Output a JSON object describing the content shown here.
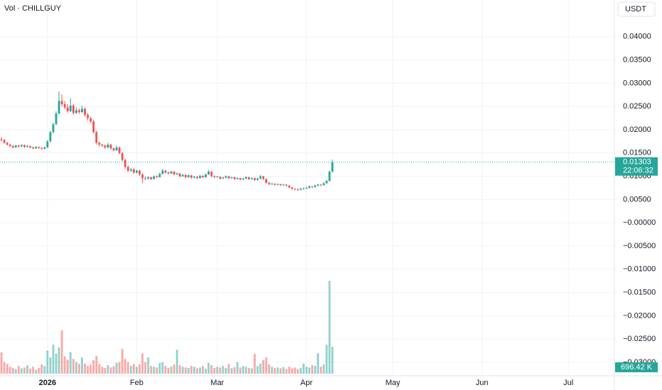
{
  "chart_data": {
    "type": "candlestick",
    "title": "Vol · CHILLGUY",
    "currency": "USDT",
    "countdown": "22:06:32",
    "up_color": "#26a69a",
    "down_color": "#ef5350",
    "grid": true,
    "ylim": [
      -0.0329,
      0.0479
    ],
    "xlim": [
      -0.5,
      213
    ],
    "yticks": [
      {
        "value": 0.04,
        "label": "0.04000"
      },
      {
        "value": 0.035,
        "label": "0.03500"
      },
      {
        "value": 0.03,
        "label": "0.03000"
      },
      {
        "value": 0.025,
        "label": "0.02500"
      },
      {
        "value": 0.02,
        "label": "0.02000"
      },
      {
        "value": 0.015,
        "label": "0.01500"
      },
      {
        "value": 0.01,
        "label": "0.01000"
      },
      {
        "value": 0.005,
        "label": "0.00500"
      },
      {
        "value": 0,
        "label": "−0.00000"
      },
      {
        "value": -0.005,
        "label": "−0.00500"
      },
      {
        "value": -0.01,
        "label": "−0.01000"
      },
      {
        "value": -0.015,
        "label": "−0.01500"
      },
      {
        "value": -0.02,
        "label": "−0.02000"
      },
      {
        "value": -0.025,
        "label": "−0.02500"
      },
      {
        "value": -0.03,
        "label": "−0.03000"
      }
    ],
    "xticks": [
      {
        "value": 16,
        "label": "2026"
      },
      {
        "value": 47,
        "label": "Feb"
      },
      {
        "value": 75,
        "label": "Mar"
      },
      {
        "value": 106,
        "label": "Apr"
      },
      {
        "value": 136,
        "label": "May"
      },
      {
        "value": 167,
        "label": "Jun"
      },
      {
        "value": 197,
        "label": "Jul"
      }
    ],
    "ohlc": [
      [
        0.018,
        0.0184,
        0.0175,
        0.0178
      ],
      [
        0.0178,
        0.018,
        0.017,
        0.0172
      ],
      [
        0.0172,
        0.0174,
        0.0166,
        0.0168
      ],
      [
        0.0168,
        0.017,
        0.0163,
        0.0165
      ],
      [
        0.0165,
        0.0167,
        0.016,
        0.0162
      ],
      [
        0.0162,
        0.0168,
        0.0161,
        0.0166
      ],
      [
        0.0166,
        0.0168,
        0.0162,
        0.0164
      ],
      [
        0.0164,
        0.0169,
        0.0163,
        0.0167
      ],
      [
        0.0167,
        0.0168,
        0.0161,
        0.0163
      ],
      [
        0.0163,
        0.0167,
        0.0162,
        0.0165
      ],
      [
        0.0165,
        0.0166,
        0.016,
        0.0162
      ],
      [
        0.0162,
        0.0164,
        0.0158,
        0.016
      ],
      [
        0.016,
        0.0165,
        0.0159,
        0.0163
      ],
      [
        0.0163,
        0.0164,
        0.0159,
        0.0161
      ],
      [
        0.0161,
        0.0162,
        0.0157,
        0.0159
      ],
      [
        0.0159,
        0.0164,
        0.0158,
        0.0162
      ],
      [
        0.0162,
        0.0178,
        0.0161,
        0.0175
      ],
      [
        0.0175,
        0.0198,
        0.0173,
        0.0195
      ],
      [
        0.0195,
        0.0215,
        0.0192,
        0.0212
      ],
      [
        0.0212,
        0.024,
        0.021,
        0.0235
      ],
      [
        0.0235,
        0.0282,
        0.0233,
        0.0262
      ],
      [
        0.0262,
        0.0276,
        0.025,
        0.0255
      ],
      [
        0.0255,
        0.0262,
        0.0244,
        0.0248
      ],
      [
        0.0248,
        0.0255,
        0.0236,
        0.024
      ],
      [
        0.024,
        0.0268,
        0.0238,
        0.0252
      ],
      [
        0.0252,
        0.0256,
        0.0232,
        0.0236
      ],
      [
        0.0236,
        0.0248,
        0.0234,
        0.0242
      ],
      [
        0.0242,
        0.0246,
        0.0234,
        0.0238
      ],
      [
        0.0238,
        0.0252,
        0.0236,
        0.0245
      ],
      [
        0.0245,
        0.0248,
        0.0228,
        0.0232
      ],
      [
        0.0232,
        0.0236,
        0.022,
        0.0225
      ],
      [
        0.0225,
        0.0228,
        0.0214,
        0.0218
      ],
      [
        0.0218,
        0.0222,
        0.0192,
        0.0195
      ],
      [
        0.0195,
        0.0198,
        0.0168,
        0.0172
      ],
      [
        0.0172,
        0.0175,
        0.0164,
        0.0168
      ],
      [
        0.0168,
        0.017,
        0.0163,
        0.0166
      ],
      [
        0.0166,
        0.0168,
        0.0159,
        0.0162
      ],
      [
        0.0162,
        0.0172,
        0.016,
        0.0168
      ],
      [
        0.0168,
        0.017,
        0.0157,
        0.016
      ],
      [
        0.016,
        0.0162,
        0.0153,
        0.0156
      ],
      [
        0.0156,
        0.0166,
        0.0154,
        0.0162
      ],
      [
        0.0162,
        0.0164,
        0.0147,
        0.015
      ],
      [
        0.015,
        0.0152,
        0.0132,
        0.0135
      ],
      [
        0.0135,
        0.0138,
        0.0116,
        0.012
      ],
      [
        0.012,
        0.0124,
        0.0109,
        0.0112
      ],
      [
        0.0112,
        0.0118,
        0.011,
        0.0115
      ],
      [
        0.0115,
        0.0117,
        0.0105,
        0.0108
      ],
      [
        0.0108,
        0.0114,
        0.0106,
        0.0112
      ],
      [
        0.0112,
        0.0114,
        0.0101,
        0.0104
      ],
      [
        0.0104,
        0.0106,
        0.0085,
        0.0096
      ],
      [
        0.0096,
        0.0099,
        0.0092,
        0.0095
      ],
      [
        0.0095,
        0.01,
        0.0093,
        0.0098
      ],
      [
        0.0098,
        0.0099,
        0.0092,
        0.0094
      ],
      [
        0.0094,
        0.0102,
        0.0093,
        0.01
      ],
      [
        0.01,
        0.0102,
        0.0096,
        0.0098
      ],
      [
        0.0098,
        0.0108,
        0.0097,
        0.0105
      ],
      [
        0.0105,
        0.0116,
        0.0104,
        0.0112
      ],
      [
        0.0112,
        0.0114,
        0.0106,
        0.0108
      ],
      [
        0.0108,
        0.011,
        0.0104,
        0.0106
      ],
      [
        0.0106,
        0.0112,
        0.0105,
        0.011
      ],
      [
        0.011,
        0.0111,
        0.0102,
        0.0104
      ],
      [
        0.0104,
        0.0108,
        0.0103,
        0.0106
      ],
      [
        0.0106,
        0.0107,
        0.0098,
        0.01
      ],
      [
        0.01,
        0.0105,
        0.0099,
        0.0103
      ],
      [
        0.0103,
        0.0104,
        0.0096,
        0.0098
      ],
      [
        0.0098,
        0.0104,
        0.0097,
        0.0102
      ],
      [
        0.0102,
        0.0103,
        0.0095,
        0.0097
      ],
      [
        0.0097,
        0.0101,
        0.0096,
        0.0099
      ],
      [
        0.0099,
        0.01,
        0.0094,
        0.0096
      ],
      [
        0.0096,
        0.0103,
        0.0095,
        0.0101
      ],
      [
        0.0101,
        0.0102,
        0.0096,
        0.0098
      ],
      [
        0.0098,
        0.0106,
        0.0097,
        0.0104
      ],
      [
        0.0104,
        0.0114,
        0.0103,
        0.011
      ],
      [
        0.011,
        0.0111,
        0.0098,
        0.01
      ],
      [
        0.01,
        0.0102,
        0.0096,
        0.0098
      ],
      [
        0.0098,
        0.0101,
        0.0097,
        0.0099
      ],
      [
        0.0099,
        0.01,
        0.0093,
        0.0095
      ],
      [
        0.0095,
        0.0099,
        0.0094,
        0.0097
      ],
      [
        0.0097,
        0.0102,
        0.0096,
        0.01
      ],
      [
        0.01,
        0.0101,
        0.0094,
        0.0096
      ],
      [
        0.0096,
        0.0099,
        0.0095,
        0.0098
      ],
      [
        0.0098,
        0.0099,
        0.0092,
        0.0094
      ],
      [
        0.0094,
        0.0098,
        0.0093,
        0.0096
      ],
      [
        0.0096,
        0.0097,
        0.0091,
        0.0093
      ],
      [
        0.0093,
        0.0097,
        0.0092,
        0.0095
      ],
      [
        0.0095,
        0.01,
        0.0094,
        0.0098
      ],
      [
        0.0098,
        0.0099,
        0.0092,
        0.0094
      ],
      [
        0.0094,
        0.0098,
        0.0093,
        0.0096
      ],
      [
        0.0096,
        0.0097,
        0.009,
        0.0092
      ],
      [
        0.0092,
        0.0097,
        0.0091,
        0.0095
      ],
      [
        0.0095,
        0.0103,
        0.0094,
        0.01
      ],
      [
        0.01,
        0.0101,
        0.0092,
        0.0094
      ],
      [
        0.0094,
        0.0095,
        0.0084,
        0.0086
      ],
      [
        0.0086,
        0.0088,
        0.0081,
        0.0083
      ],
      [
        0.0083,
        0.0086,
        0.0082,
        0.0084
      ],
      [
        0.0084,
        0.0085,
        0.008,
        0.0082
      ],
      [
        0.0082,
        0.0085,
        0.0081,
        0.0083
      ],
      [
        0.0083,
        0.0084,
        0.0079,
        0.0081
      ],
      [
        0.0081,
        0.0084,
        0.008,
        0.0082
      ],
      [
        0.0082,
        0.0083,
        0.0078,
        0.008
      ],
      [
        0.008,
        0.0081,
        0.0074,
        0.0076
      ],
      [
        0.0076,
        0.0077,
        0.0071,
        0.0073
      ],
      [
        0.0073,
        0.0074,
        0.007,
        0.0072
      ],
      [
        0.0072,
        0.0073,
        0.0069,
        0.0071
      ],
      [
        0.0071,
        0.0075,
        0.007,
        0.0073
      ],
      [
        0.0073,
        0.0076,
        0.0072,
        0.0074
      ],
      [
        0.0074,
        0.0077,
        0.0073,
        0.0075
      ],
      [
        0.0075,
        0.008,
        0.0074,
        0.0078
      ],
      [
        0.0078,
        0.0079,
        0.0075,
        0.0077
      ],
      [
        0.0077,
        0.0082,
        0.0076,
        0.008
      ],
      [
        0.008,
        0.0084,
        0.0079,
        0.0082
      ],
      [
        0.0082,
        0.0083,
        0.0079,
        0.0081
      ],
      [
        0.0081,
        0.0087,
        0.008,
        0.0085
      ],
      [
        0.0085,
        0.0092,
        0.0084,
        0.009
      ],
      [
        0.009,
        0.0112,
        0.0089,
        0.011
      ],
      [
        0.011,
        0.0136,
        0.0108,
        0.01303
      ]
    ],
    "volume": {
      "ylim": [
        0,
        2400
      ],
      "values": [
        550,
        300,
        250,
        180,
        150,
        120,
        200,
        140,
        160,
        220,
        130,
        180,
        100,
        150,
        240,
        200,
        600,
        420,
        750,
        520,
        680,
        1120,
        450,
        360,
        560,
        380,
        300,
        250,
        420,
        260,
        200,
        230,
        350,
        460,
        250,
        180,
        150,
        220,
        160,
        190,
        280,
        300,
        640,
        380,
        300,
        200,
        250,
        180,
        240,
        520,
        300,
        420,
        200,
        180,
        160,
        280,
        300,
        200,
        150,
        180,
        240,
        620,
        220,
        180,
        160,
        150,
        200,
        180,
        140,
        160,
        200,
        130,
        280,
        220,
        150,
        180,
        160,
        200,
        150,
        250,
        140,
        170,
        300,
        160,
        200,
        180,
        150,
        140,
        510,
        200,
        260,
        350,
        420,
        240,
        180,
        150,
        160,
        140,
        170,
        120,
        180,
        140,
        160,
        120,
        150,
        260,
        180,
        160,
        220,
        200,
        530,
        180,
        240,
        750,
        2400,
        696.42
      ],
      "value_labels": {
        "115": "696.42 K"
      }
    }
  }
}
